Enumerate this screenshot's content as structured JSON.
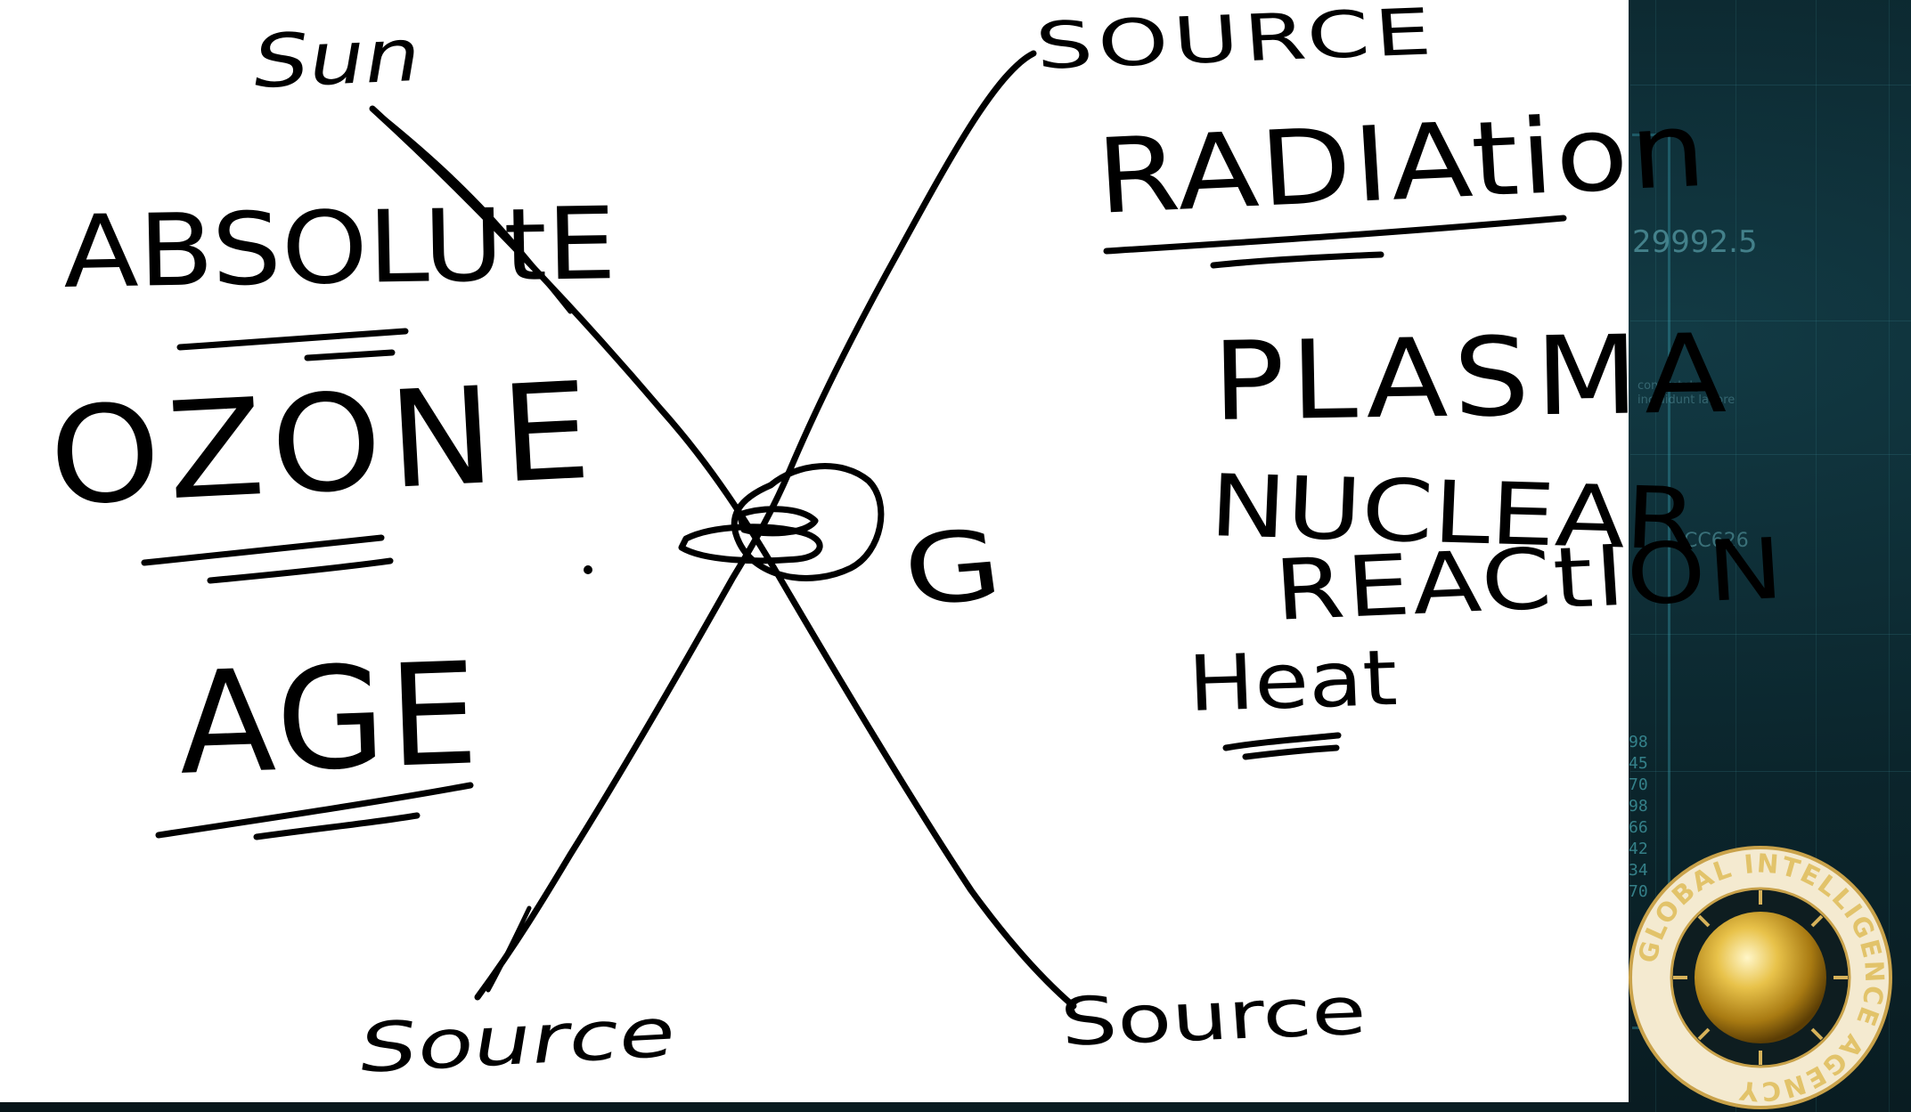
{
  "whiteboard": {
    "labels": {
      "sun": "Sun",
      "source_top_right": "SOURCE",
      "source_bottom_left": "Source",
      "source_bottom_right": "Source",
      "radiation": "RADIAtion",
      "absolute": "ABSOLUtE",
      "ozone": "OZONE",
      "age": "AGE",
      "plasma": "PLASMA",
      "nuclear": "NUCLEAR",
      "reaction": "REACtION",
      "heat": "Heat",
      "g_mark": "G"
    }
  },
  "background": {
    "hud_number": "29992.5",
    "hud_code": "CC626",
    "hud_small_text_1": "consectetur",
    "hud_small_text_2": "incididunt labore",
    "hud_column_values": [
      "98",
      "45",
      "70",
      "98",
      "66",
      "42",
      "34",
      "70"
    ]
  },
  "logo": {
    "ring_text": "GLOBAL INTELLIGENCE AGENCY"
  },
  "colors": {
    "board": "#ffffff",
    "ink": "#000000",
    "hud_bg": "#0b252c",
    "hud_accent": "#3aa9b8",
    "logo_gold": "#d4a838"
  }
}
